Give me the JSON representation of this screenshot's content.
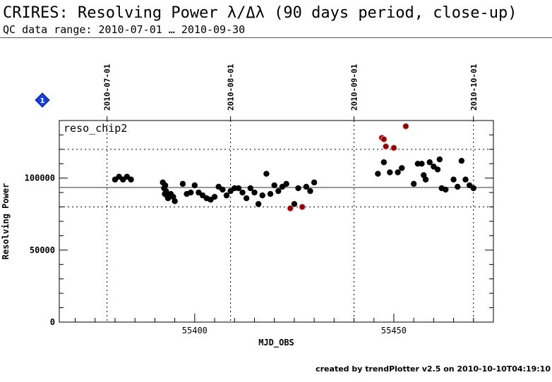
{
  "header": {
    "title": "CRIRES: Resolving Power λ/Δλ (90 days period, close-up)",
    "subtitle": "QC data range: 2010-07-01 … 2010-09-30"
  },
  "footer": {
    "credit": "created by trendPlotter v2.5 on 2010-10-10T04:19:10"
  },
  "colors": {
    "point": "#000000",
    "outlier": "#8b0000",
    "marker": "#1a3fd9",
    "gridline": "#000000"
  },
  "chart_data": {
    "type": "scatter",
    "panel_label": "reso_chip2",
    "marker_label": "1",
    "xlabel": "MJD_OBS",
    "ylabel": "Resolving Power",
    "xlim": [
      55366,
      55475
    ],
    "ylim": [
      0,
      140000
    ],
    "x_ticks": [
      55400,
      55450
    ],
    "x_tick_labels": [
      "55400",
      "55450"
    ],
    "y_ticks": [
      0,
      50000,
      100000
    ],
    "y_tick_labels": [
      "0",
      "50000",
      "100000"
    ],
    "date_markers": [
      {
        "x": 55378,
        "label": "2010-07-01"
      },
      {
        "x": 55409,
        "label": "2010-08-01"
      },
      {
        "x": 55440,
        "label": "2010-09-01"
      },
      {
        "x": 55470,
        "label": "2010-10-01"
      }
    ],
    "reference_lines": {
      "mean": 93500,
      "upper": 120000,
      "lower": 80000
    },
    "series": [
      {
        "role": "measurements",
        "points": [
          [
            55380,
            99000
          ],
          [
            55381,
            101000
          ],
          [
            55382,
            99000
          ],
          [
            55383,
            101000
          ],
          [
            55384,
            99000
          ],
          [
            55392,
            97000
          ],
          [
            55392.6,
            95000
          ],
          [
            55392.3,
            93000
          ],
          [
            55392.8,
            91000
          ],
          [
            55392.5,
            89000
          ],
          [
            55393,
            88000
          ],
          [
            55393.3,
            86000
          ],
          [
            55394,
            89000
          ],
          [
            55394.6,
            87000
          ],
          [
            55395,
            84000
          ],
          [
            55397,
            96000
          ],
          [
            55398,
            89000
          ],
          [
            55399,
            90000
          ],
          [
            55400,
            95000
          ],
          [
            55401,
            90000
          ],
          [
            55402,
            88000
          ],
          [
            55403,
            86000
          ],
          [
            55404,
            85000
          ],
          [
            55405,
            87000
          ],
          [
            55406,
            94000
          ],
          [
            55407,
            92000
          ],
          [
            55408,
            88000
          ],
          [
            55409,
            91000
          ],
          [
            55410,
            93000
          ],
          [
            55411,
            93000
          ],
          [
            55412,
            90000
          ],
          [
            55413,
            86000
          ],
          [
            55414,
            93000
          ],
          [
            55415,
            90000
          ],
          [
            55416,
            82000
          ],
          [
            55417,
            88000
          ],
          [
            55418,
            103000
          ],
          [
            55419,
            89000
          ],
          [
            55420,
            95000
          ],
          [
            55421,
            91000
          ],
          [
            55422,
            94000
          ],
          [
            55423,
            96000
          ],
          [
            55425,
            82000
          ],
          [
            55426,
            93000
          ],
          [
            55428,
            94000
          ],
          [
            55429,
            91000
          ],
          [
            55430,
            97000
          ],
          [
            55446,
            103000
          ],
          [
            55447.5,
            111000
          ],
          [
            55449,
            104000
          ],
          [
            55451,
            104000
          ],
          [
            55452,
            107000
          ],
          [
            55455,
            96000
          ],
          [
            55456,
            110000
          ],
          [
            55457,
            110000
          ],
          [
            55457.5,
            102000
          ],
          [
            55458,
            99000
          ],
          [
            55459,
            111000
          ],
          [
            55460,
            108000
          ],
          [
            55461,
            106000
          ],
          [
            55461.5,
            113000
          ],
          [
            55462,
            93000
          ],
          [
            55463,
            92000
          ],
          [
            55465,
            99000
          ],
          [
            55466,
            94000
          ],
          [
            55467,
            112000
          ],
          [
            55468,
            99000
          ],
          [
            55469,
            95000
          ],
          [
            55470,
            93000
          ]
        ]
      },
      {
        "role": "outliers",
        "points": [
          [
            55424,
            79000
          ],
          [
            55427,
            80000
          ],
          [
            55447,
            128000
          ],
          [
            55447.5,
            127000
          ],
          [
            55448,
            122000
          ],
          [
            55450,
            121000
          ],
          [
            55453,
            136000
          ]
        ]
      }
    ]
  }
}
